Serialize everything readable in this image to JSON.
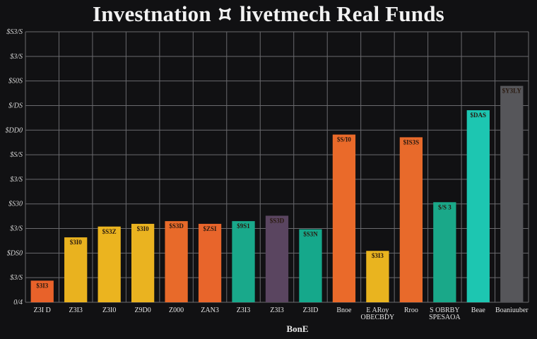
{
  "chart_data": {
    "type": "bar",
    "title": "Investnation ⯏ livetmech Real Funds",
    "xlabel": "BonE",
    "ylabel": "",
    "y_tick_labels": [
      "0/4",
      "$3/S",
      "$DS0",
      "$3/S",
      "$S30",
      "$3/S",
      "$S/S",
      "$DD0",
      "$/DS",
      "$S0S",
      "$3/S",
      "$S3/S"
    ],
    "ylim": [
      0,
      100
    ],
    "grid": true,
    "categories": [
      "Z3I D",
      "Z3I3",
      "Z3I0",
      "Z9D0",
      "Z000",
      "ZAN3",
      "Z3I3",
      "Z3I3",
      "Z3ID",
      "Bnoe",
      "E ARoy / OBECBDY",
      "Rroo",
      "S OBRBY / SPESAOA",
      "Beae",
      "Boaniuuber"
    ],
    "values": [
      8,
      24,
      28,
      29,
      30,
      29,
      30,
      32,
      27,
      62,
      19,
      61,
      37,
      71,
      80
    ],
    "value_labels": [
      "$3I3",
      "$3I0",
      "$S3Z",
      "$3I0",
      "$S3D",
      "$ZSI",
      "$9S1",
      "$S3D",
      "$S3N",
      "$S/I0",
      "$3I3",
      "$IS3S",
      "$/S 3",
      "$DAS",
      "$Y3LY"
    ],
    "colors": [
      "#e8622a",
      "#e9b21f",
      "#ebb41f",
      "#eab320",
      "#e86a2a",
      "#e8652b",
      "#19a98b",
      "#5a4560",
      "#15a88b",
      "#ea6a2a",
      "#e9b41f",
      "#e86a2b",
      "#1aa889",
      "#1dc6b1",
      "#56565a"
    ]
  }
}
